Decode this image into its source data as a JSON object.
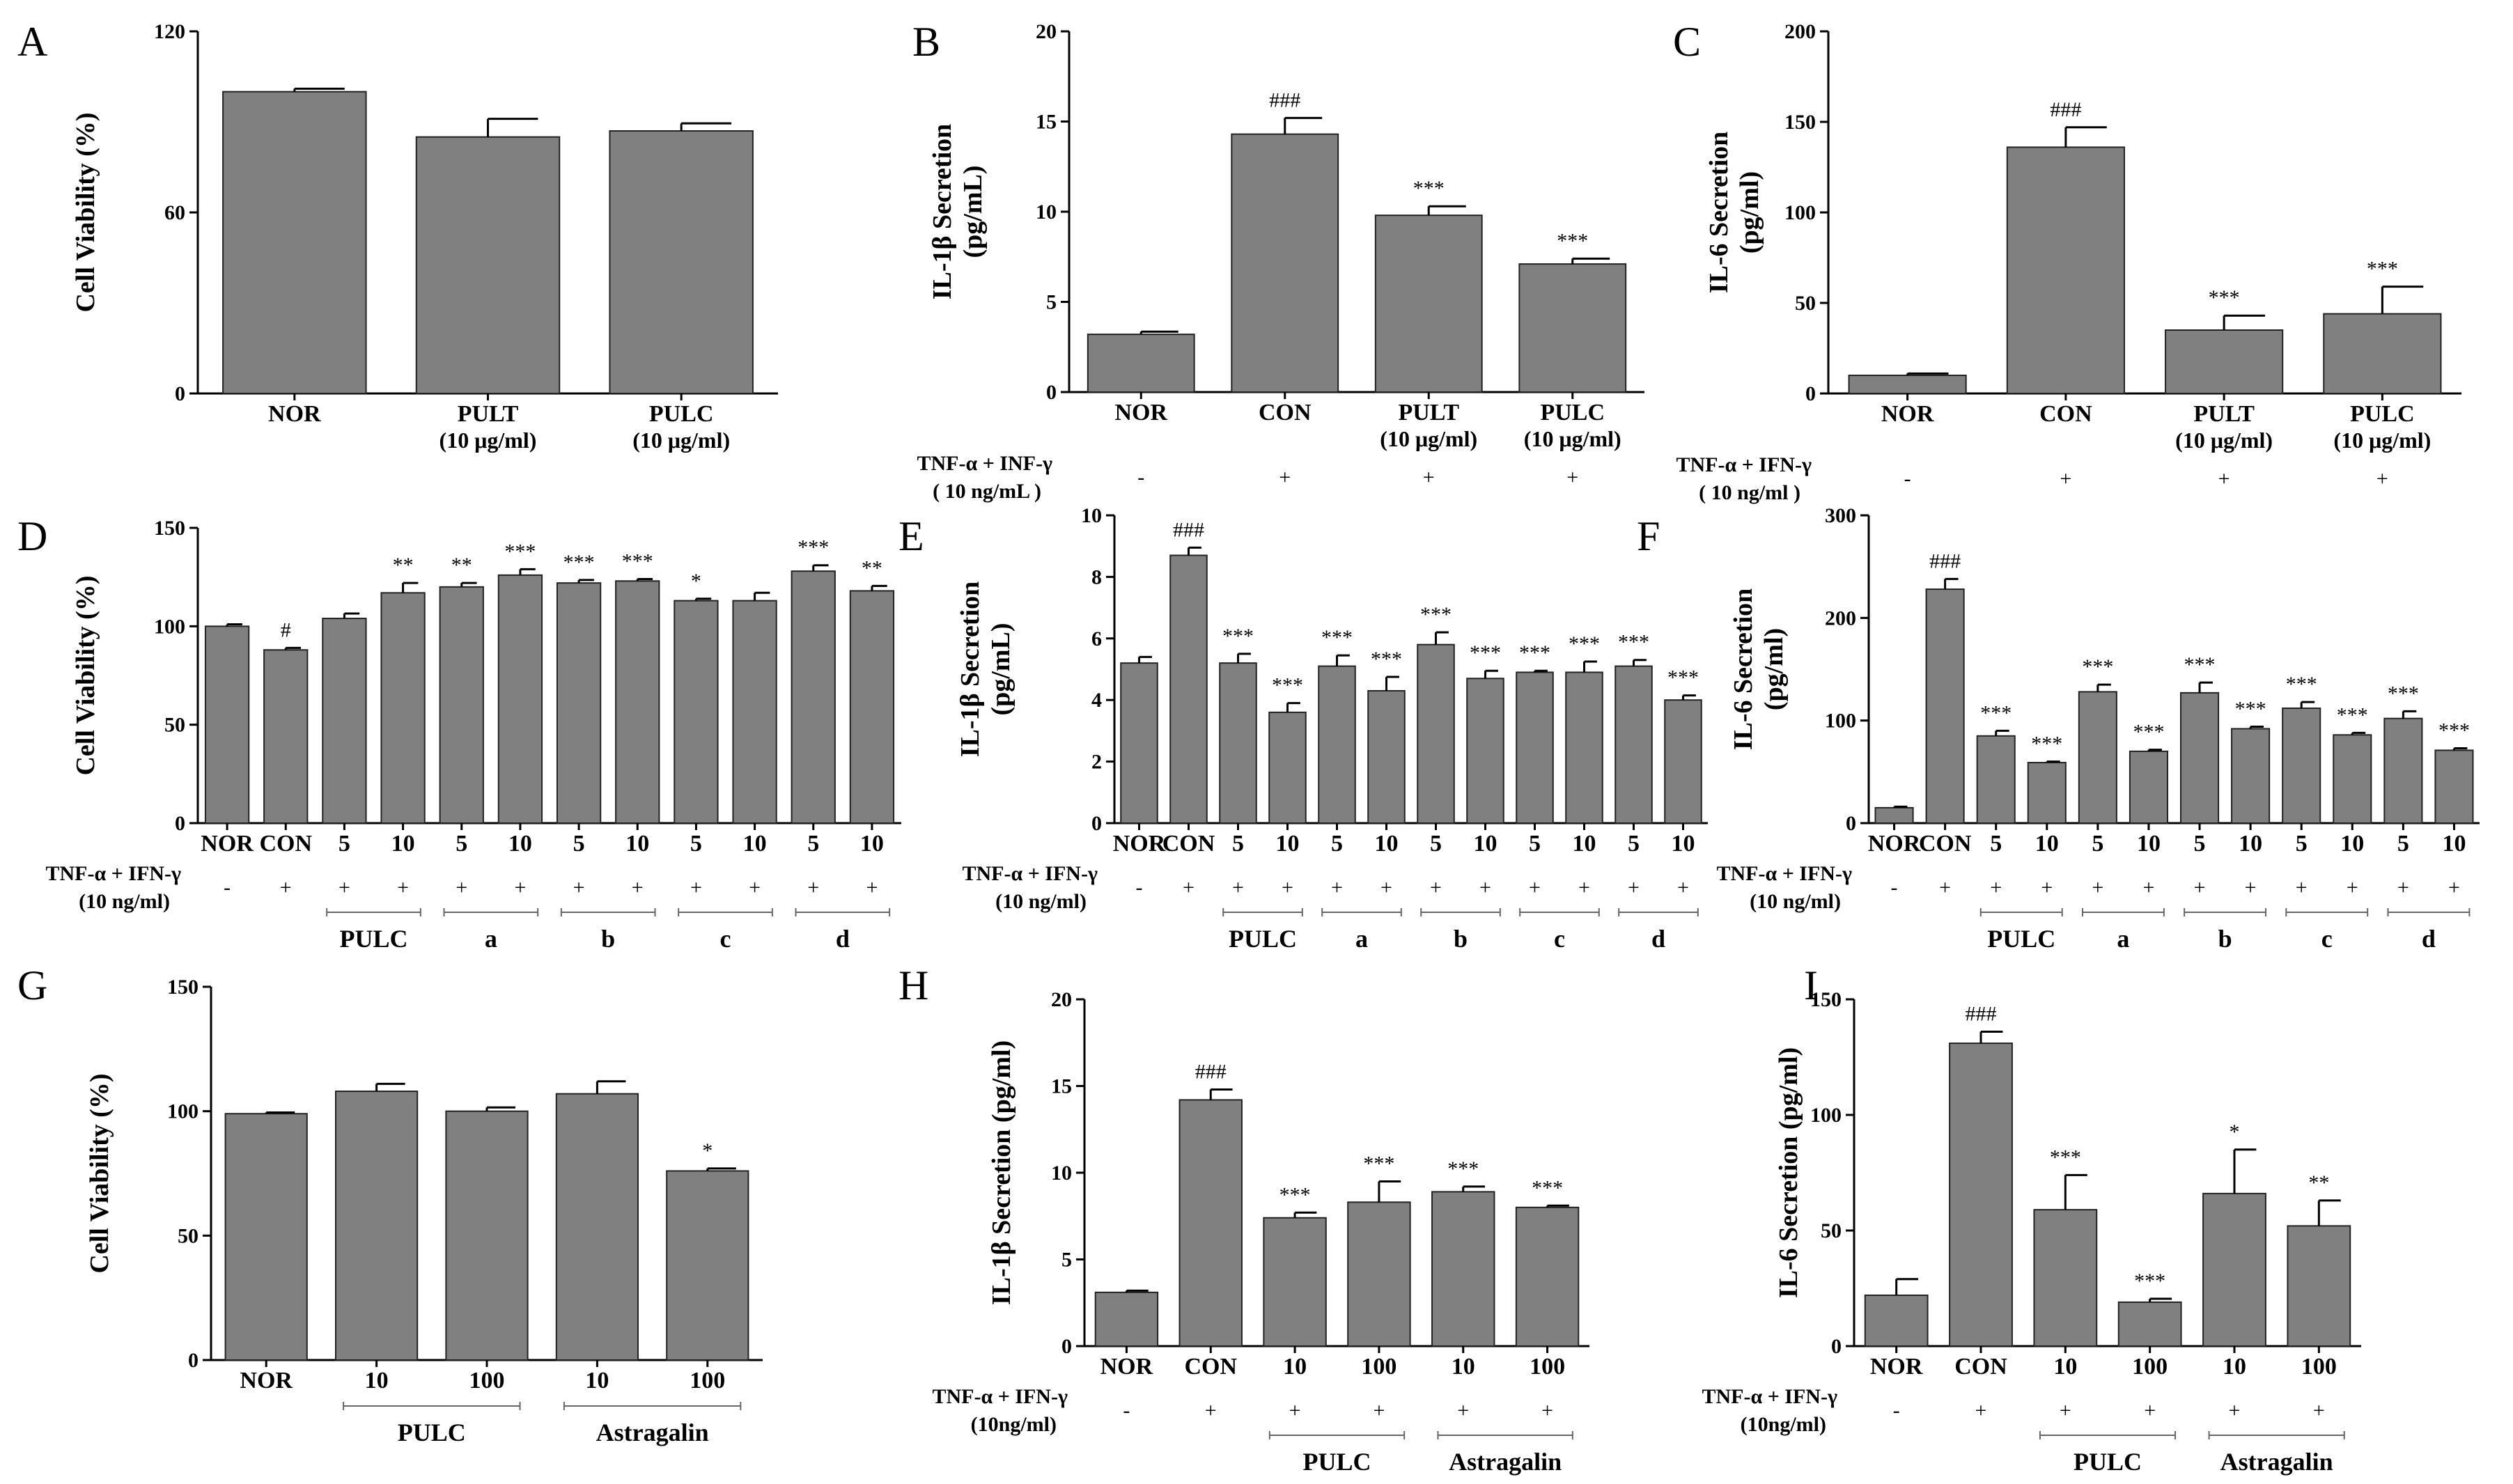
{
  "chart_data": [
    {
      "panel": "A",
      "type": "bar",
      "ylabel": [
        "Cell Viability (%)"
      ],
      "ylim": [
        0,
        120
      ],
      "yticks": [
        0,
        60,
        120
      ],
      "categories": [
        "NOR",
        "PULT",
        "PULC"
      ],
      "subcategories": [
        "",
        "(10 μg/ml)",
        "(10 μg/ml)"
      ],
      "values": [
        100,
        85,
        87
      ],
      "errors": [
        1,
        6,
        2.5
      ],
      "annotations": [
        "",
        "",
        ""
      ],
      "treatment": null,
      "groups": []
    },
    {
      "panel": "B",
      "type": "bar",
      "ylabel": [
        "IL-1β Secretion",
        "(pg/mL)"
      ],
      "ylim": [
        0,
        20
      ],
      "yticks": [
        0,
        5,
        10,
        15,
        20
      ],
      "categories": [
        "NOR",
        "CON",
        "PULT",
        "PULC"
      ],
      "subcategories": [
        "",
        "",
        "(10 μg/ml)",
        "(10 μg/ml)"
      ],
      "values": [
        3.2,
        14.3,
        9.8,
        7.1
      ],
      "errors": [
        0.15,
        0.9,
        0.5,
        0.3
      ],
      "annotations": [
        "",
        "###",
        "***",
        "***"
      ],
      "treatment": {
        "label1": "TNF-α + INF-γ",
        "label2": "( 10 ng/mL )",
        "signs": [
          "-",
          "+",
          "+",
          "+"
        ]
      },
      "groups": []
    },
    {
      "panel": "C",
      "type": "bar",
      "ylabel": [
        "IL-6 Secretion",
        "(pg/ml)"
      ],
      "ylim": [
        0,
        200
      ],
      "yticks": [
        0,
        50,
        100,
        150,
        200
      ],
      "categories": [
        "NOR",
        "CON",
        "PULT",
        "PULC"
      ],
      "subcategories": [
        "",
        "",
        "(10 μg/ml)",
        "(10 μg/ml)"
      ],
      "values": [
        10,
        136,
        35,
        44
      ],
      "errors": [
        1,
        11,
        8,
        15
      ],
      "annotations": [
        "",
        "###",
        "***",
        "***"
      ],
      "treatment": {
        "label1": "TNF-α + IFN-γ",
        "label2": "( 10 ng/ml )",
        "signs": [
          "-",
          "+",
          "+",
          "+"
        ]
      },
      "groups": []
    },
    {
      "panel": "D",
      "type": "bar",
      "ylabel": [
        "Cell Viability (%)"
      ],
      "ylim": [
        0,
        150
      ],
      "yticks": [
        0,
        50,
        100,
        150
      ],
      "categories": [
        "NOR",
        "CON",
        "5",
        "10",
        "5",
        "10",
        "5",
        "10",
        "5",
        "10",
        "5",
        "10"
      ],
      "values": [
        100,
        88,
        104,
        117,
        120,
        126,
        122,
        123,
        113,
        113,
        128,
        118
      ],
      "errors": [
        1,
        1,
        2.5,
        5,
        2,
        3,
        1.5,
        1,
        1,
        4,
        3,
        2.5
      ],
      "annotations": [
        "",
        "#",
        "",
        "**",
        "**",
        "***",
        "***",
        "***",
        "*",
        "",
        "***",
        "**"
      ],
      "treatment": {
        "label1": "TNF-α + IFN-γ",
        "label2": "(10 ng/ml)",
        "signs": [
          "-",
          "+",
          "+",
          "+",
          "+",
          "+",
          "+",
          "+",
          "+",
          "+",
          "+",
          "+"
        ]
      },
      "groups": [
        {
          "label": "PULC",
          "start": 2,
          "end": 3
        },
        {
          "label": "a",
          "start": 4,
          "end": 5
        },
        {
          "label": "b",
          "start": 6,
          "end": 7
        },
        {
          "label": "c",
          "start": 8,
          "end": 9
        },
        {
          "label": "d",
          "start": 10,
          "end": 11
        }
      ]
    },
    {
      "panel": "E",
      "type": "bar",
      "ylabel": [
        "IL-1β Secretion",
        "(pg/mL)"
      ],
      "ylim": [
        0,
        10
      ],
      "yticks": [
        0,
        2,
        4,
        6,
        8,
        10
      ],
      "categories": [
        "NOR",
        "CON",
        "5",
        "10",
        "5",
        "10",
        "5",
        "10",
        "5",
        "10",
        "5",
        "10"
      ],
      "values": [
        5.2,
        8.7,
        5.2,
        3.6,
        5.1,
        4.3,
        5.8,
        4.7,
        4.9,
        4.9,
        5.1,
        4.0
      ],
      "errors": [
        0.2,
        0.25,
        0.3,
        0.3,
        0.35,
        0.45,
        0.4,
        0.25,
        0.05,
        0.35,
        0.2,
        0.15
      ],
      "annotations": [
        "",
        "###",
        "***",
        "***",
        "***",
        "***",
        "***",
        "***",
        "***",
        "***",
        "***",
        "***"
      ],
      "treatment": {
        "label1": "TNF-α + IFN-γ",
        "label2": "(10 ng/ml)",
        "signs": [
          "-",
          "+",
          "+",
          "+",
          "+",
          "+",
          "+",
          "+",
          "+",
          "+",
          "+",
          "+"
        ]
      },
      "groups": [
        {
          "label": "PULC",
          "start": 2,
          "end": 3
        },
        {
          "label": "a",
          "start": 4,
          "end": 5
        },
        {
          "label": "b",
          "start": 6,
          "end": 7
        },
        {
          "label": "c",
          "start": 8,
          "end": 9
        },
        {
          "label": "d",
          "start": 10,
          "end": 11
        }
      ]
    },
    {
      "panel": "F",
      "type": "bar",
      "ylabel": [
        "IL-6 Secretion",
        "(pg/ml)"
      ],
      "ylim": [
        0,
        300
      ],
      "yticks": [
        0,
        100,
        200,
        300
      ],
      "categories": [
        "NOR",
        "CON",
        "5",
        "10",
        "5",
        "10",
        "5",
        "10",
        "5",
        "10",
        "5",
        "10"
      ],
      "values": [
        15,
        228,
        85,
        59,
        128,
        70,
        127,
        92,
        112,
        86,
        102,
        71
      ],
      "errors": [
        1,
        10,
        5,
        1,
        7,
        1.5,
        10,
        2,
        6,
        2,
        7,
        2
      ],
      "annotations": [
        "",
        "###",
        "***",
        "***",
        "***",
        "***",
        "***",
        "***",
        "***",
        "***",
        "***",
        "***"
      ],
      "treatment": {
        "label1": "TNF-α + IFN-γ",
        "label2": "(10 ng/ml)",
        "signs": [
          "-",
          "+",
          "+",
          "+",
          "+",
          "+",
          "+",
          "+",
          "+",
          "+",
          "+",
          "+"
        ]
      },
      "groups": [
        {
          "label": "PULC",
          "start": 2,
          "end": 3
        },
        {
          "label": "a",
          "start": 4,
          "end": 5
        },
        {
          "label": "b",
          "start": 6,
          "end": 7
        },
        {
          "label": "c",
          "start": 8,
          "end": 9
        },
        {
          "label": "d",
          "start": 10,
          "end": 11
        }
      ]
    },
    {
      "panel": "G",
      "type": "bar",
      "ylabel": [
        "Cell Viability (%)"
      ],
      "ylim": [
        0,
        150
      ],
      "yticks": [
        0,
        50,
        100,
        150
      ],
      "categories": [
        "NOR",
        "10",
        "100",
        "10",
        "100"
      ],
      "values": [
        99,
        108,
        100,
        107,
        76
      ],
      "errors": [
        0.5,
        3,
        1.5,
        5,
        1
      ],
      "annotations": [
        "",
        "",
        "",
        "",
        "*"
      ],
      "treatment": null,
      "groups": [
        {
          "label": "PULC",
          "start": 1,
          "end": 2
        },
        {
          "label": "Astragalin",
          "start": 3,
          "end": 4
        }
      ]
    },
    {
      "panel": "H",
      "type": "bar",
      "ylabel": [
        "IL-1β Secretion (pg/ml)"
      ],
      "ylim": [
        0,
        20
      ],
      "yticks": [
        0,
        5,
        10,
        15,
        20
      ],
      "categories": [
        "NOR",
        "CON",
        "10",
        "100",
        "10",
        "100"
      ],
      "values": [
        3.1,
        14.2,
        7.4,
        8.3,
        8.9,
        8.0
      ],
      "errors": [
        0.1,
        0.6,
        0.3,
        1.2,
        0.3,
        0.1
      ],
      "annotations": [
        "",
        "###",
        "***",
        "***",
        "***",
        "***"
      ],
      "treatment": {
        "label1": "TNF-α + IFN-γ",
        "label2": "(10ng/ml)",
        "signs": [
          "-",
          "+",
          "+",
          "+",
          "+",
          "+"
        ]
      },
      "groups": [
        {
          "label": "PULC",
          "start": 2,
          "end": 3
        },
        {
          "label": "Astragalin",
          "start": 4,
          "end": 5
        }
      ]
    },
    {
      "panel": "I",
      "type": "bar",
      "ylabel": [
        "IL-6 Secretion (pg/ml)"
      ],
      "ylim": [
        0,
        150
      ],
      "yticks": [
        0,
        50,
        100,
        150
      ],
      "categories": [
        "NOR",
        "CON",
        "10",
        "100",
        "10",
        "100"
      ],
      "values": [
        22,
        131,
        59,
        19,
        66,
        52
      ],
      "errors": [
        7,
        5,
        15,
        1.5,
        19,
        11
      ],
      "annotations": [
        "",
        "###",
        "***",
        "***",
        "*",
        "**"
      ],
      "treatment": {
        "label1": "TNF-α + IFN-γ",
        "label2": "(10ng/ml)",
        "signs": [
          "-",
          "+",
          "+",
          "+",
          "+",
          "+"
        ]
      },
      "groups": [
        {
          "label": "PULC",
          "start": 2,
          "end": 3
        },
        {
          "label": "Astragalin",
          "start": 4,
          "end": 5
        }
      ]
    }
  ]
}
